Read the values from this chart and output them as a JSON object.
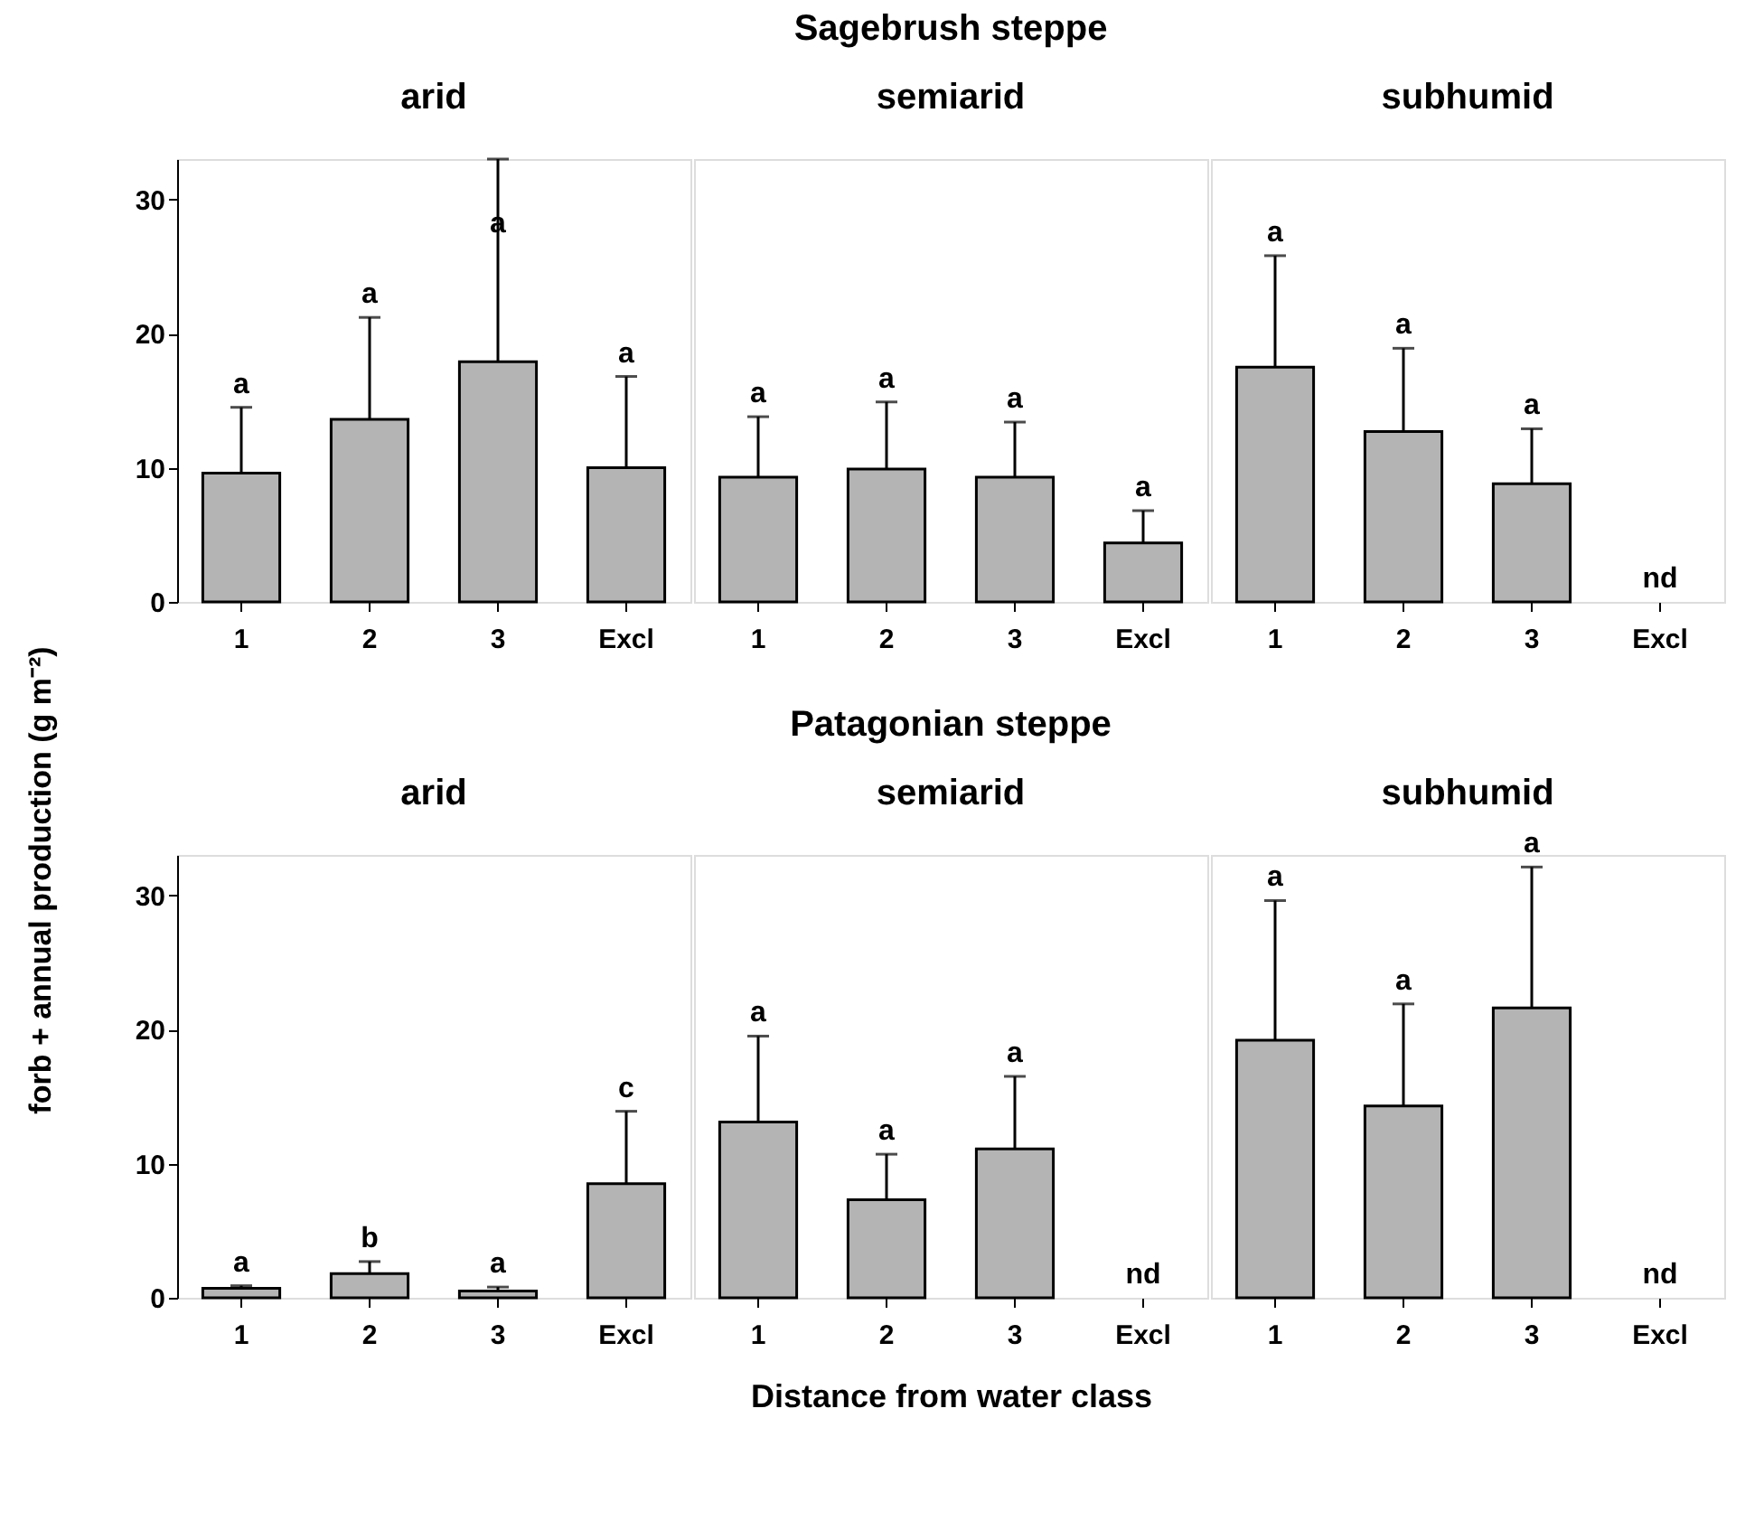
{
  "chart_data": [
    {
      "type": "bar",
      "title": "arid",
      "ylabel": "forb + annual production (g m⁻²)",
      "categories": [
        "1",
        "2",
        "3",
        "Excl"
      ],
      "values": [
        9.6,
        13.6,
        17.9,
        10.0
      ],
      "errors": [
        [
          9.6,
          14.5
        ],
        [
          13.6,
          21.2
        ],
        [
          17.9,
          33.0
        ],
        [
          10.0,
          16.8
        ]
      ],
      "color": "#b4b4b4",
      "ylim": [
        0,
        33
      ],
      "yticks": [
        0,
        10,
        20,
        30
      ],
      "grid": false,
      "annotations": [
        {
          "text": "a",
          "x": "1",
          "y": 14.5
        },
        {
          "text": "a",
          "x": "2",
          "y": 21.2
        },
        {
          "text": "a",
          "x": "3",
          "y": 26.5
        },
        {
          "text": "a",
          "x": "Excl",
          "y": 16.8
        }
      ]
    },
    {
      "type": "bar",
      "title": "semiarid",
      "categories": [
        "1",
        "2",
        "3",
        "Excl"
      ],
      "values": [
        9.3,
        9.9,
        9.3,
        4.4
      ],
      "errors": [
        [
          9.3,
          13.8
        ],
        [
          9.9,
          14.9
        ],
        [
          9.3,
          13.4
        ],
        [
          4.4,
          6.8
        ]
      ],
      "color": "#b4b4b4",
      "ylim": [
        0,
        33
      ],
      "yticks": [
        0,
        10,
        20,
        30
      ],
      "grid": false,
      "tick_labels": "x",
      "subtitle": "Sagebrush steppe",
      "annotations": [
        {
          "text": "a",
          "x": "1",
          "y": 13.8
        },
        {
          "text": "a",
          "x": "2",
          "y": 14.9
        },
        {
          "text": "a",
          "x": "3",
          "y": 13.4
        },
        {
          "text": "a",
          "x": "Excl",
          "y": 6.8
        }
      ]
    },
    {
      "type": "bar",
      "title": "subhumid",
      "categories": [
        "1",
        "2",
        "3",
        "Excl"
      ],
      "values": [
        17.5,
        12.7,
        8.8,
        null
      ],
      "errors": [
        [
          17.5,
          25.8
        ],
        [
          12.7,
          18.9
        ],
        [
          8.8,
          12.9
        ],
        null
      ],
      "color": "#b4b4b4",
      "ylim": [
        0,
        33
      ],
      "yticks": [
        0,
        10,
        20,
        30
      ],
      "grid": false,
      "tick_labels": "x",
      "annotations": [
        {
          "text": "a",
          "x": "1",
          "y": 25.8
        },
        {
          "text": "a",
          "x": "2",
          "y": 18.9
        },
        {
          "text": "a",
          "x": "3",
          "y": 12.9
        },
        "nd"
      ]
    },
    {
      "type": "bar",
      "title": "arid",
      "categories": [
        "1",
        "2",
        "3",
        "Excl"
      ],
      "values": [
        0.7,
        1.8,
        0.5,
        8.5
      ],
      "errors": [
        [
          0.7,
          0.9
        ],
        [
          1.8,
          2.7
        ],
        [
          0.5,
          0.8
        ],
        [
          8.5,
          13.9
        ]
      ],
      "color": "#b4b4b4",
      "ylim": [
        0,
        33
      ],
      "yticks": [
        0,
        10,
        20,
        30
      ],
      "grid": false,
      "annotations": [
        {
          "text": "a",
          "x": "1",
          "y": 0.9
        },
        {
          "text": "b",
          "x": "2",
          "y": 2.7
        },
        {
          "text": "a",
          "x": "3",
          "y": 0.8
        },
        {
          "text": "c",
          "x": "Excl",
          "y": 13.9
        }
      ]
    },
    {
      "type": "bar",
      "title": "semiarid",
      "xlabel": "Distance from water class",
      "categories": [
        "1",
        "2",
        "3",
        "Excl"
      ],
      "values": [
        13.1,
        7.3,
        11.1,
        null
      ],
      "errors": [
        [
          13.1,
          19.5
        ],
        [
          7.3,
          10.7
        ],
        [
          11.1,
          16.5
        ],
        null
      ],
      "color": "#b4b4b4",
      "ylim": [
        0,
        33
      ],
      "yticks": [
        0,
        10,
        20,
        30
      ],
      "grid": false,
      "tick_labels": "x",
      "subtitle": "Patagonian steppe",
      "annotations": [
        {
          "text": "a",
          "x": "1",
          "y": 19.5
        },
        {
          "text": "a",
          "x": "2",
          "y": 10.7
        },
        {
          "text": "a",
          "x": "3",
          "y": 16.5
        },
        "nd"
      ]
    },
    {
      "type": "bar",
      "title": "subhumid",
      "categories": [
        "1",
        "2",
        "3",
        "Excl"
      ],
      "values": [
        19.2,
        14.3,
        21.6,
        null
      ],
      "errors": [
        [
          19.2,
          29.6
        ],
        [
          14.3,
          21.9
        ],
        [
          21.6,
          32.1
        ],
        null
      ],
      "color": "#b4b4b4",
      "ylim": [
        0,
        33
      ],
      "yticks": [
        0,
        10,
        20,
        30
      ],
      "grid": false,
      "tick_labels": "x",
      "annotations": [
        {
          "text": "a",
          "x": "1",
          "y": 29.6
        },
        {
          "text": "a",
          "x": "2",
          "y": 21.9
        },
        {
          "text": "a",
          "x": "3",
          "y": 32.1
        },
        "nd"
      ]
    }
  ]
}
